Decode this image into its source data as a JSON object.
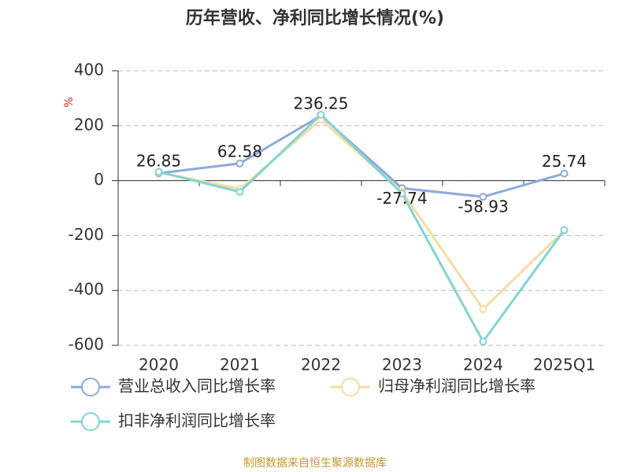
{
  "chart_data": {
    "type": "line",
    "title": "历年营收、净利同比增长情况(%)",
    "y_label": "%",
    "categories": [
      "2020",
      "2021",
      "2022",
      "2023",
      "2024",
      "2025Q1"
    ],
    "series": [
      {
        "name": "营业总收入同比增长率",
        "color": "#8eaad8",
        "values": [
          26.85,
          62.58,
          236.25,
          -27.74,
          -58.93,
          25.74
        ],
        "show_labels": true
      },
      {
        "name": "归母净利润同比增长率",
        "color": "#f7dba0",
        "values": [
          30,
          -30,
          222,
          -40,
          -468,
          -182
        ],
        "show_labels": false
      },
      {
        "name": "扣非净利润同比增长率",
        "color": "#82d4d4",
        "values": [
          32,
          -41,
          240,
          -47,
          -586,
          -180
        ],
        "show_labels": false
      }
    ],
    "ylim": [
      -600,
      400
    ],
    "yticks": [
      400,
      200,
      0,
      -200,
      -400,
      -600
    ],
    "grid": true,
    "source": "制图数据来自恒生聚源数据库"
  }
}
